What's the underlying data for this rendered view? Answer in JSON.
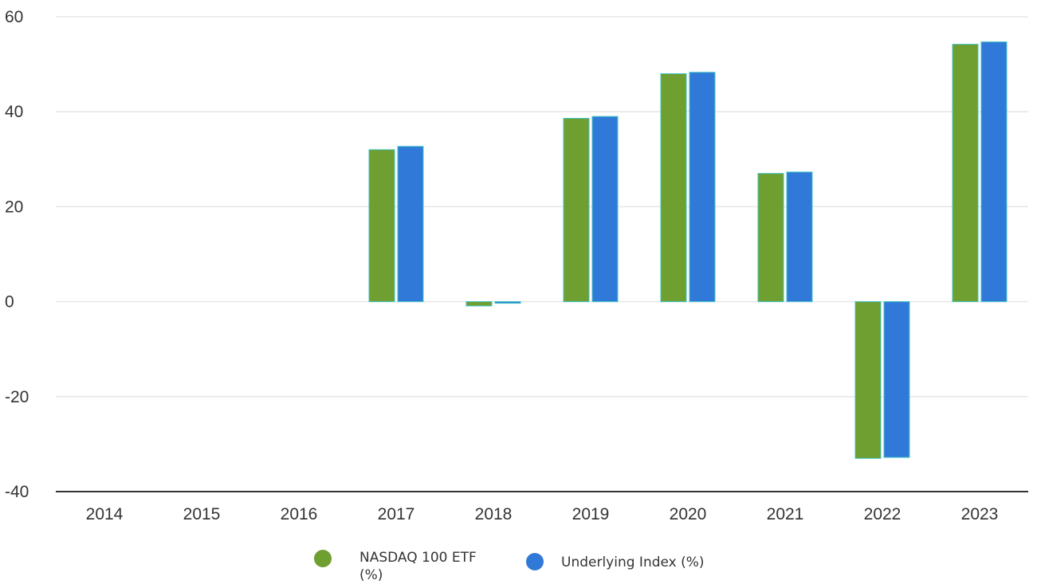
{
  "chart_data": {
    "type": "bar",
    "categories": [
      "2014",
      "2015",
      "2016",
      "2017",
      "2018",
      "2019",
      "2020",
      "2021",
      "2022",
      "2023"
    ],
    "series": [
      {
        "name": "NASDAQ 100 ETF (%)",
        "color": "#6f9e31",
        "values": [
          null,
          null,
          null,
          32.0,
          -0.9,
          38.6,
          48.0,
          27.0,
          -33.0,
          54.2
        ]
      },
      {
        "name": "Underlying Index (%)",
        "color": "#3079d8",
        "values": [
          null,
          null,
          null,
          32.7,
          -0.1,
          39.0,
          48.3,
          27.3,
          -32.8,
          54.7
        ]
      }
    ],
    "ylim": [
      -40,
      60
    ],
    "yticks": [
      "60",
      "40",
      "20",
      "0",
      "-20",
      "-40"
    ],
    "grid": true,
    "legend_position": "bottom",
    "title": "",
    "xlabel": "",
    "ylabel": ""
  }
}
